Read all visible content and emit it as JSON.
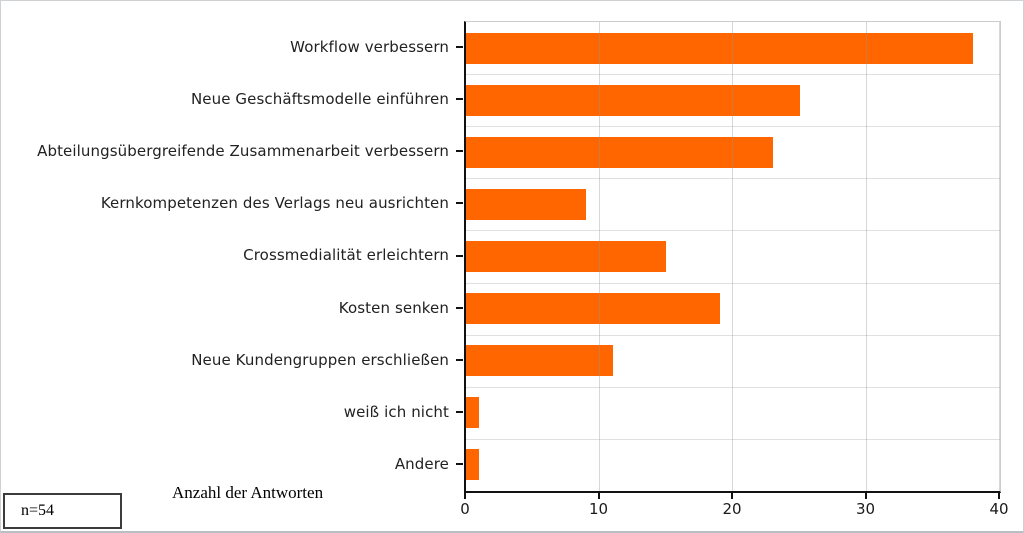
{
  "chart_data": {
    "type": "bar",
    "orientation": "horizontal",
    "categories": [
      "Workflow verbessern",
      "Neue Geschäftsmodelle einführen",
      "Abteilungsübergreifende Zusammenarbeit verbessern",
      "Kernkompetenzen des Verlags neu ausrichten",
      "Crossmedialität erleichtern",
      "Kosten senken",
      "Neue Kundengruppen erschließen",
      "weiß ich nicht",
      "Andere"
    ],
    "values": [
      38,
      25,
      23,
      9,
      15,
      19,
      11,
      1,
      1
    ],
    "title": "",
    "xlabel": "Anzahl der Antworten",
    "ylabel": "",
    "xlim": [
      0,
      40
    ],
    "x_ticks": [
      0,
      10,
      20,
      30,
      40
    ],
    "x_tick_labels": [
      "0",
      "10",
      "20",
      "30",
      "40"
    ],
    "grid": true,
    "legend": "none",
    "bar_color": "#ff6600",
    "annotation": "n=54"
  }
}
